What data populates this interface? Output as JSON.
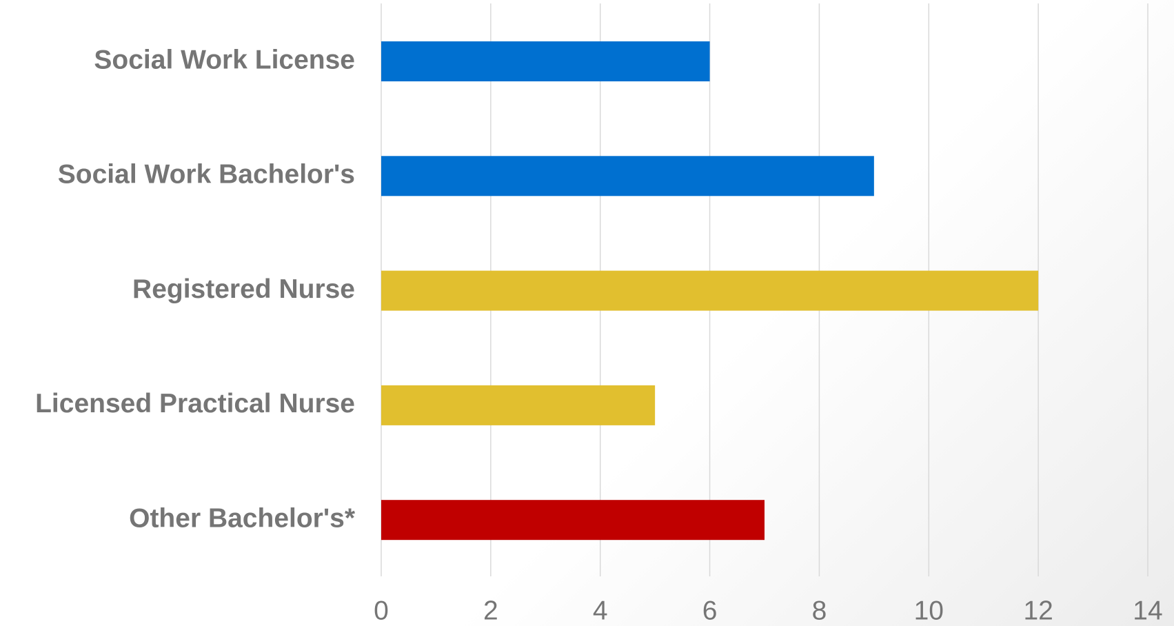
{
  "chart_data": {
    "type": "bar",
    "orientation": "horizontal",
    "categories": [
      "Social Work License",
      "Social Work Bachelor's",
      "Registered Nurse",
      "Licensed Practical Nurse",
      "Other Bachelor's*"
    ],
    "values": [
      6,
      9,
      12,
      5,
      7
    ],
    "colors": [
      "#0070d0",
      "#0070d0",
      "#e1bf2f",
      "#e1bf2f",
      "#c00000"
    ],
    "xlim": [
      0,
      14
    ],
    "xticks": [
      0,
      2,
      4,
      6,
      8,
      10,
      12,
      14
    ],
    "grid": true
  }
}
